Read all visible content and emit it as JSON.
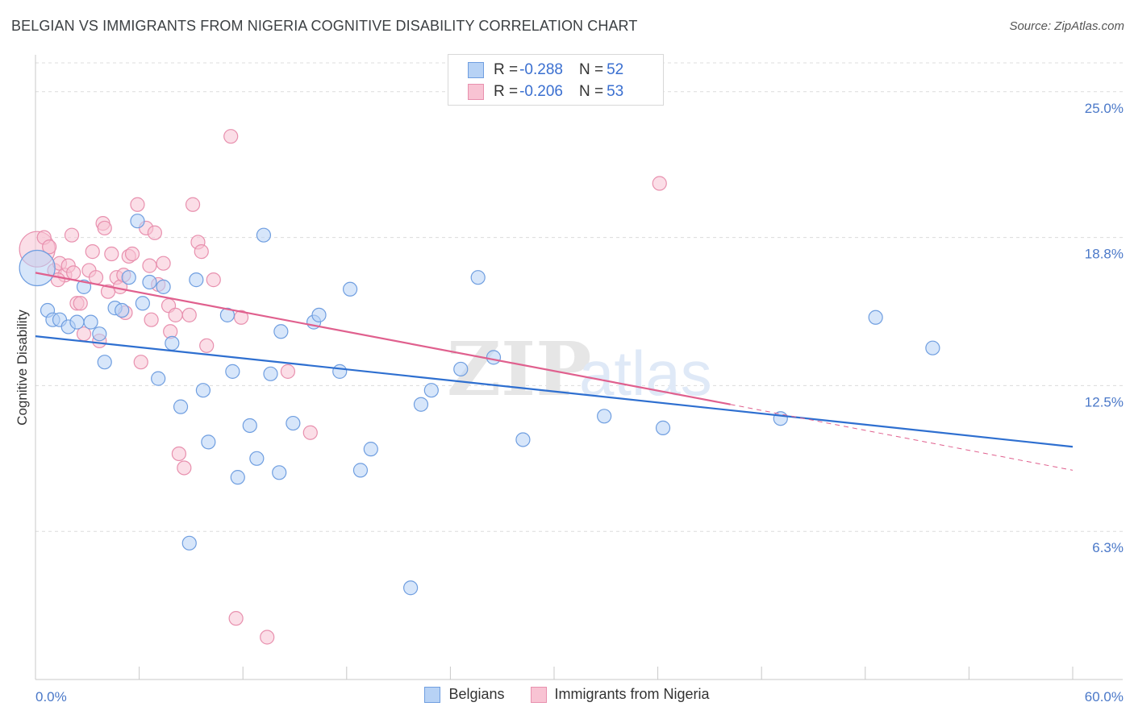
{
  "header": {
    "title": "BELGIAN VS IMMIGRANTS FROM NIGERIA COGNITIVE DISABILITY CORRELATION CHART",
    "source": "Source: ZipAtlas.com"
  },
  "watermark": {
    "zip": "ZIP",
    "atlas": "atlas"
  },
  "legend_top": [
    {
      "r_label": "R = ",
      "r_value": "-0.288",
      "n_label": "N = ",
      "n_value": "52"
    },
    {
      "r_label": "R = ",
      "r_value": "-0.206",
      "n_label": "N = ",
      "n_value": "53"
    }
  ],
  "colors": {
    "belgian_fill": "#b7d2f5",
    "belgian_stroke": "#6f9ee0",
    "belgian_line": "#2e6fd0",
    "nigeria_fill": "#f8c3d3",
    "nigeria_stroke": "#e890ae",
    "nigeria_line": "#e0608e",
    "grid": "#dcdcdc",
    "tick_text": "#4a78c8"
  },
  "chart_data": {
    "type": "scatter",
    "title": "BELGIAN VS IMMIGRANTS FROM NIGERIA COGNITIVE DISABILITY CORRELATION CHART",
    "xlabel": "",
    "ylabel": "Cognitive Disability",
    "xlim": [
      0,
      60
    ],
    "ylim": [
      0,
      26.5
    ],
    "y_ticks": [
      {
        "value": 6.3,
        "label": "6.3%"
      },
      {
        "value": 12.5,
        "label": "12.5%"
      },
      {
        "value": 18.8,
        "label": "18.8%"
      },
      {
        "value": 25.0,
        "label": "25.0%"
      }
    ],
    "x_tick_labels": [
      {
        "value": 0,
        "label": "0.0%"
      },
      {
        "value": 60,
        "label": "60.0%"
      }
    ],
    "x_minor_ticks": [
      6,
      12,
      18,
      24,
      30,
      36,
      42,
      48,
      54,
      60
    ],
    "grid": true,
    "legend_position": "top-center",
    "series": [
      {
        "name": "Belgians",
        "trend": {
          "x0": 0,
          "y0": 14.6,
          "x1": 60,
          "y1": 9.9
        },
        "points": [
          [
            0.1,
            17.5,
            "big"
          ],
          [
            0.7,
            15.7
          ],
          [
            1.0,
            15.3
          ],
          [
            1.4,
            15.3
          ],
          [
            1.9,
            15.0
          ],
          [
            2.4,
            15.2
          ],
          [
            3.2,
            15.2
          ],
          [
            3.7,
            14.7
          ],
          [
            2.8,
            16.7
          ],
          [
            4.0,
            13.5
          ],
          [
            4.6,
            15.8
          ],
          [
            5.0,
            15.7
          ],
          [
            5.4,
            17.1
          ],
          [
            5.9,
            19.5
          ],
          [
            6.2,
            16.0
          ],
          [
            6.6,
            16.9
          ],
          [
            7.4,
            16.7
          ],
          [
            7.1,
            12.8
          ],
          [
            7.9,
            14.3
          ],
          [
            8.4,
            11.6
          ],
          [
            8.9,
            5.8
          ],
          [
            9.3,
            17.0
          ],
          [
            9.7,
            12.3
          ],
          [
            10.0,
            10.1
          ],
          [
            11.1,
            15.5
          ],
          [
            11.4,
            13.1
          ],
          [
            11.7,
            8.6
          ],
          [
            12.4,
            10.8
          ],
          [
            12.8,
            9.4
          ],
          [
            13.2,
            18.9
          ],
          [
            13.6,
            13.0
          ],
          [
            14.1,
            8.8
          ],
          [
            14.2,
            14.8
          ],
          [
            14.9,
            10.9
          ],
          [
            16.1,
            15.2
          ],
          [
            16.4,
            15.5
          ],
          [
            17.6,
            13.1
          ],
          [
            18.2,
            16.6
          ],
          [
            18.8,
            8.9
          ],
          [
            19.4,
            9.8
          ],
          [
            22.3,
            11.7
          ],
          [
            22.9,
            12.3
          ],
          [
            24.6,
            13.2
          ],
          [
            25.6,
            17.1
          ],
          [
            26.5,
            13.7
          ],
          [
            28.2,
            10.2
          ],
          [
            32.9,
            11.2
          ],
          [
            36.3,
            10.7
          ],
          [
            43.1,
            11.1
          ],
          [
            48.6,
            15.4
          ],
          [
            51.9,
            14.1
          ],
          [
            21.7,
            3.9
          ]
        ]
      },
      {
        "name": "Immigrants from Nigeria",
        "trend": {
          "x0": 0,
          "y0": 17.3,
          "x1": 40.2,
          "y1": 11.7
        },
        "trend_extension": {
          "x0": 40.2,
          "y0": 11.7,
          "x1": 60,
          "y1": 8.9
        },
        "points": [
          [
            0.1,
            18.3,
            "big"
          ],
          [
            0.5,
            18.8
          ],
          [
            0.8,
            18.4
          ],
          [
            1.1,
            17.4
          ],
          [
            1.4,
            17.7
          ],
          [
            1.7,
            17.2
          ],
          [
            1.9,
            17.6
          ],
          [
            2.1,
            18.9
          ],
          [
            2.4,
            16.0
          ],
          [
            2.6,
            16.0
          ],
          [
            2.8,
            14.7
          ],
          [
            3.1,
            17.4
          ],
          [
            3.5,
            17.1
          ],
          [
            3.7,
            14.4
          ],
          [
            3.9,
            19.4
          ],
          [
            4.0,
            19.2
          ],
          [
            4.4,
            18.1
          ],
          [
            4.7,
            17.1
          ],
          [
            4.9,
            16.7
          ],
          [
            5.1,
            17.2
          ],
          [
            5.4,
            18.0
          ],
          [
            5.6,
            18.1
          ],
          [
            5.9,
            20.2
          ],
          [
            6.1,
            13.5
          ],
          [
            6.4,
            19.2
          ],
          [
            6.6,
            17.6
          ],
          [
            6.9,
            19.0
          ],
          [
            7.1,
            16.8
          ],
          [
            7.4,
            17.7
          ],
          [
            7.7,
            15.9
          ],
          [
            8.1,
            15.5
          ],
          [
            8.3,
            9.6
          ],
          [
            8.6,
            9.0
          ],
          [
            8.9,
            15.5
          ],
          [
            9.1,
            20.2
          ],
          [
            9.4,
            18.6
          ],
          [
            9.6,
            18.2
          ],
          [
            9.9,
            14.2
          ],
          [
            10.3,
            17.0
          ],
          [
            11.3,
            23.1
          ],
          [
            11.6,
            2.6
          ],
          [
            11.9,
            15.4
          ],
          [
            13.4,
            1.8
          ],
          [
            14.6,
            13.1
          ],
          [
            15.9,
            10.5
          ],
          [
            36.1,
            21.1
          ],
          [
            1.3,
            17.0
          ],
          [
            2.2,
            17.3
          ],
          [
            4.2,
            16.5
          ],
          [
            6.7,
            15.3
          ],
          [
            3.3,
            18.2
          ],
          [
            5.2,
            15.6
          ],
          [
            7.8,
            14.8
          ]
        ]
      }
    ]
  },
  "bottom_legend": [
    {
      "label": "Belgians"
    },
    {
      "label": "Immigrants from Nigeria"
    }
  ]
}
